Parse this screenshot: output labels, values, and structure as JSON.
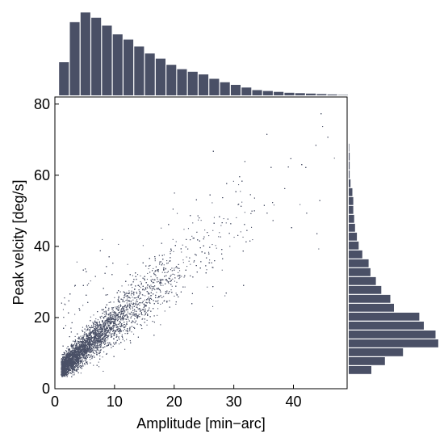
{
  "chart_data": {
    "type": "scatter",
    "title": "",
    "xlabel": "Amplitude [min−arc]",
    "ylabel": "Peak velcity [deg/s]",
    "xlim": [
      0,
      49
    ],
    "ylim": [
      0,
      82
    ],
    "xticks": [
      "0",
      "10",
      "20",
      "30",
      "40"
    ],
    "yticks": [
      "0",
      "20",
      "40",
      "60",
      "80"
    ],
    "xtick_values": [
      0,
      10,
      20,
      30,
      40
    ],
    "ytick_values": [
      0,
      20,
      40,
      60,
      80
    ],
    "grid": false,
    "marker_color": "#4a5066",
    "scatter_model": {
      "description_of_trend": "dense cloud rising from about (1,5) to about (40,55)",
      "n_points": 9000
    },
    "x_histogram": {
      "bin_edges_start": 0.7,
      "bin_width": 1.8,
      "relative_counts": [
        0.38,
        0.84,
        0.95,
        0.89,
        0.8,
        0.7,
        0.64,
        0.56,
        0.48,
        0.42,
        0.35,
        0.3,
        0.27,
        0.24,
        0.19,
        0.15,
        0.12,
        0.09,
        0.06,
        0.05,
        0.04,
        0.03,
        0.025,
        0.02,
        0.015,
        0.01,
        0.005
      ]
    },
    "y_histogram": {
      "bin_edges_start": 4,
      "bin_width": 2.5,
      "relative_counts": [
        0.25,
        0.4,
        0.6,
        0.99,
        0.96,
        0.83,
        0.78,
        0.5,
        0.46,
        0.36,
        0.3,
        0.24,
        0.22,
        0.15,
        0.11,
        0.09,
        0.07,
        0.06,
        0.05,
        0.05,
        0.04,
        0.02,
        0.01,
        0.01,
        0.01,
        0.005
      ]
    }
  }
}
